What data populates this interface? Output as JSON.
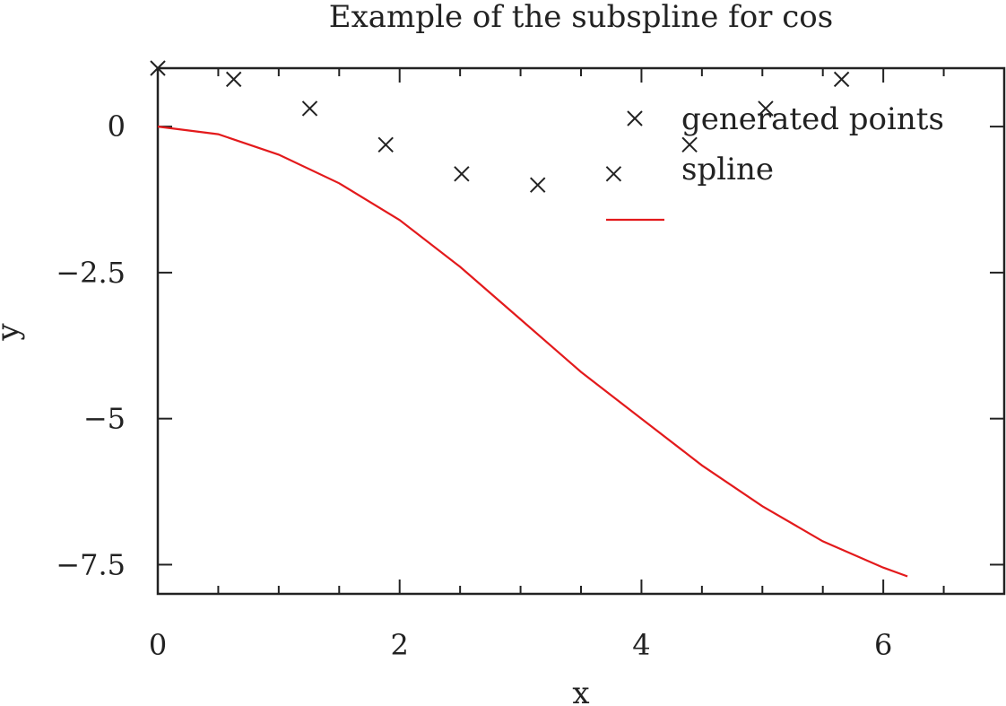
{
  "colors": {
    "axis": "#222222",
    "points": "#222222",
    "spline": "#e31a1c"
  },
  "chart_data": {
    "type": "line",
    "title": "Example of the subspline for cos",
    "xlabel": "x",
    "ylabel": "y",
    "xlim": [
      0,
      7
    ],
    "ylim": [
      -8,
      1
    ],
    "xticks": [
      {
        "value": 0,
        "label": "0"
      },
      {
        "value": 2,
        "label": "2"
      },
      {
        "value": 4,
        "label": "4"
      },
      {
        "value": 6,
        "label": "6"
      }
    ],
    "xminor": [
      0.5,
      1,
      1.5,
      2.5,
      3,
      3.5,
      4.5,
      5,
      5.5,
      6.5
    ],
    "yticks": [
      {
        "value": 0,
        "label": "0"
      },
      {
        "value": -2.5,
        "label": "−2.5"
      },
      {
        "value": -5,
        "label": "−5"
      },
      {
        "value": -7.5,
        "label": "−7.5"
      }
    ],
    "grid": false,
    "legend_position": "top-right",
    "series": [
      {
        "name": "generated points",
        "kind": "scatter",
        "marker": "x",
        "x": [
          0,
          0.628,
          1.257,
          1.885,
          2.513,
          3.142,
          3.77,
          4.398,
          5.027,
          5.655
        ],
        "y": [
          1,
          0.81,
          0.31,
          -0.31,
          -0.81,
          -1,
          -0.81,
          -0.31,
          0.31,
          0.81
        ]
      },
      {
        "name": "spline",
        "kind": "line",
        "x": [
          0,
          0.5,
          1,
          1.5,
          2,
          2.5,
          3,
          3.5,
          4,
          4.5,
          5,
          5.5,
          6,
          6.2
        ],
        "y": [
          0,
          -0.13,
          -0.48,
          -0.97,
          -1.6,
          -2.4,
          -3.3,
          -4.2,
          -5.0,
          -5.8,
          -6.5,
          -7.1,
          -7.55,
          -7.7
        ]
      }
    ]
  }
}
